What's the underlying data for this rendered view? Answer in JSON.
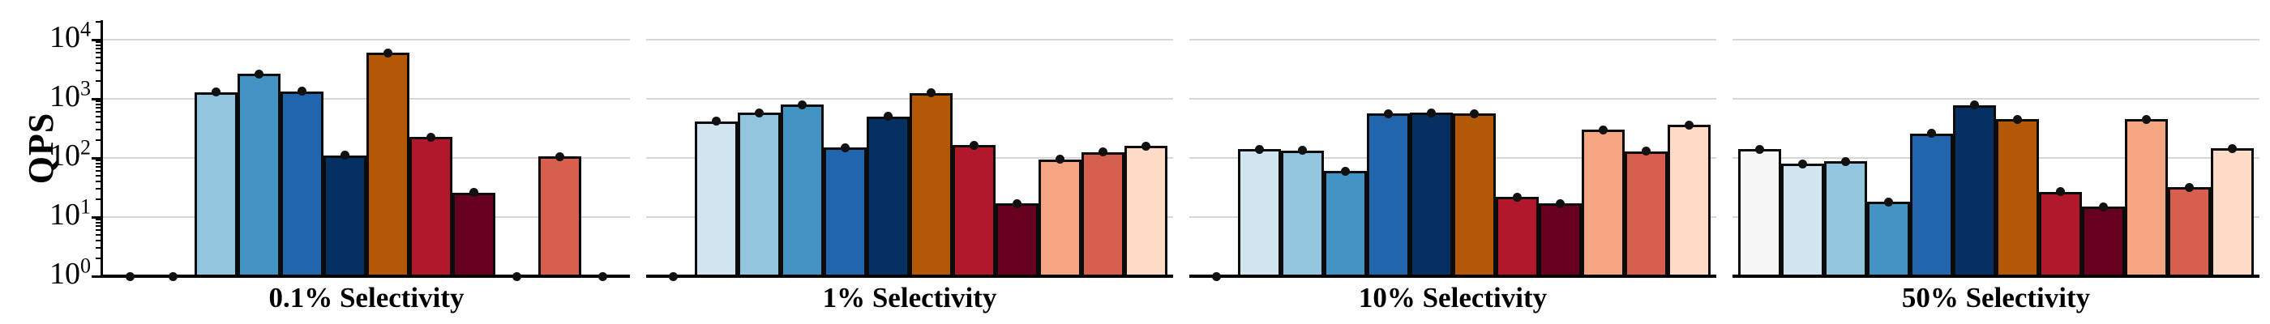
{
  "figure_title": "",
  "y_axis": {
    "label": "QPS",
    "scale": "log",
    "tick_mantissa": "10",
    "tick_exponents": [
      "0",
      "1",
      "2",
      "3",
      "4"
    ]
  },
  "colors": {
    "bar_edge": "#0b0b0b",
    "marker": "#111111",
    "gridline": "#d6d6d6",
    "spine": "#000000",
    "background": "#ffffff"
  },
  "bar_palette": [
    "#f7f7f7",
    "#d1e5f0",
    "#92c5de",
    "#4393c3",
    "#2166ac",
    "#053061",
    "#b35806",
    "#b2182b",
    "#67001f",
    "#f4a582",
    "#d6604d",
    "#fddbc7"
  ],
  "chart_data": [
    {
      "type": "bar",
      "title": "0.1% Selectivity",
      "ylabel": "QPS",
      "yscale": "log",
      "ylim": [
        1,
        20000
      ],
      "grid": "horizontal decade gridlines at 10^1..10^4",
      "legend": "none",
      "marker_note": "black dot at top center of every bar; bars with value 1 show only a dot on the baseline",
      "values": [
        1,
        1,
        1300,
        2650,
        1350,
        110,
        6000,
        225,
        26,
        1,
        105,
        1
      ]
    },
    {
      "type": "bar",
      "title": "1% Selectivity",
      "ylabel": "QPS",
      "yscale": "log",
      "ylim": [
        1,
        20000
      ],
      "grid": "horizontal decade gridlines at 10^1..10^4",
      "legend": "none",
      "values": [
        1,
        420,
        580,
        790,
        150,
        500,
        1250,
        165,
        17,
        95,
        125,
        160
      ]
    },
    {
      "type": "bar",
      "title": "10% Selectivity",
      "ylabel": "QPS",
      "yscale": "log",
      "ylim": [
        1,
        20000
      ],
      "grid": "horizontal decade gridlines at 10^1..10^4",
      "legend": "none",
      "values": [
        1,
        140,
        135,
        60,
        560,
        580,
        560,
        22,
        17,
        300,
        130,
        360
      ]
    },
    {
      "type": "bar",
      "title": "50% Selectivity",
      "ylabel": "QPS",
      "yscale": "log",
      "ylim": [
        1,
        20000
      ],
      "grid": "horizontal decade gridlines at 10^1..10^4",
      "legend": "none",
      "values": [
        140,
        80,
        88,
        18,
        260,
        780,
        450,
        27,
        15,
        450,
        32,
        145
      ]
    }
  ]
}
